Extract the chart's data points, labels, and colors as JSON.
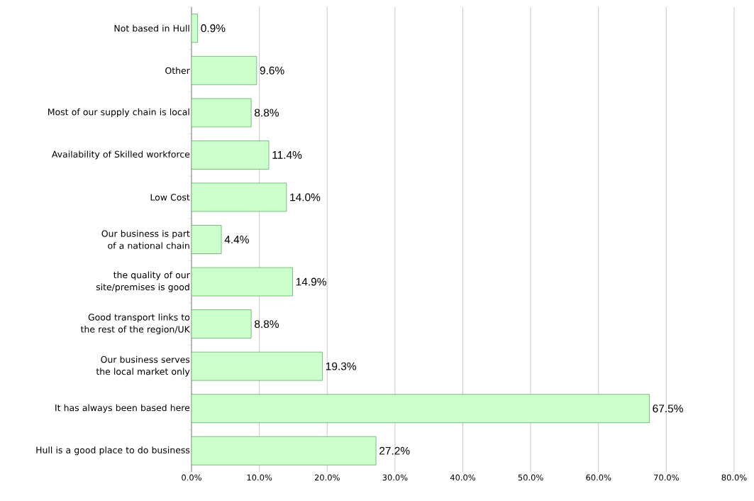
{
  "chart_data": {
    "type": "bar",
    "orientation": "horizontal",
    "categories": [
      "Not based in Hull",
      "Other",
      "Most of our supply chain is local",
      "Availability of Skilled workforce",
      "Low Cost",
      "Our business is part of a national chain",
      "the quality of our site/premises is good",
      "Good transport links to the rest of the region/UK",
      "Our business serves the local market only",
      "It has always been based here",
      "Hull is a good place to do business"
    ],
    "values": [
      0.9,
      9.6,
      8.8,
      11.4,
      14.0,
      4.4,
      14.9,
      8.8,
      19.3,
      67.5,
      27.2
    ],
    "value_labels": [
      "0.9%",
      "9.6%",
      "8.8%",
      "11.4%",
      "14.0%",
      "4.4%",
      "14.9%",
      "8.8%",
      "19.3%",
      "67.5%",
      "27.2%"
    ],
    "color": "#ccffcc",
    "xlim": [
      0,
      80
    ],
    "xticks": [
      {
        "value": 0,
        "label": "0.0%"
      },
      {
        "value": 10,
        "label": "10.0%"
      },
      {
        "value": 20,
        "label": "20.0%"
      },
      {
        "value": 30,
        "label": "30.0%"
      },
      {
        "value": 40,
        "label": "40.0%"
      },
      {
        "value": 50,
        "label": "50.0%"
      },
      {
        "value": 60,
        "label": "60.0%"
      },
      {
        "value": 70,
        "label": "70.0%"
      },
      {
        "value": 80,
        "label": "80.0%"
      }
    ],
    "grid": "x"
  }
}
